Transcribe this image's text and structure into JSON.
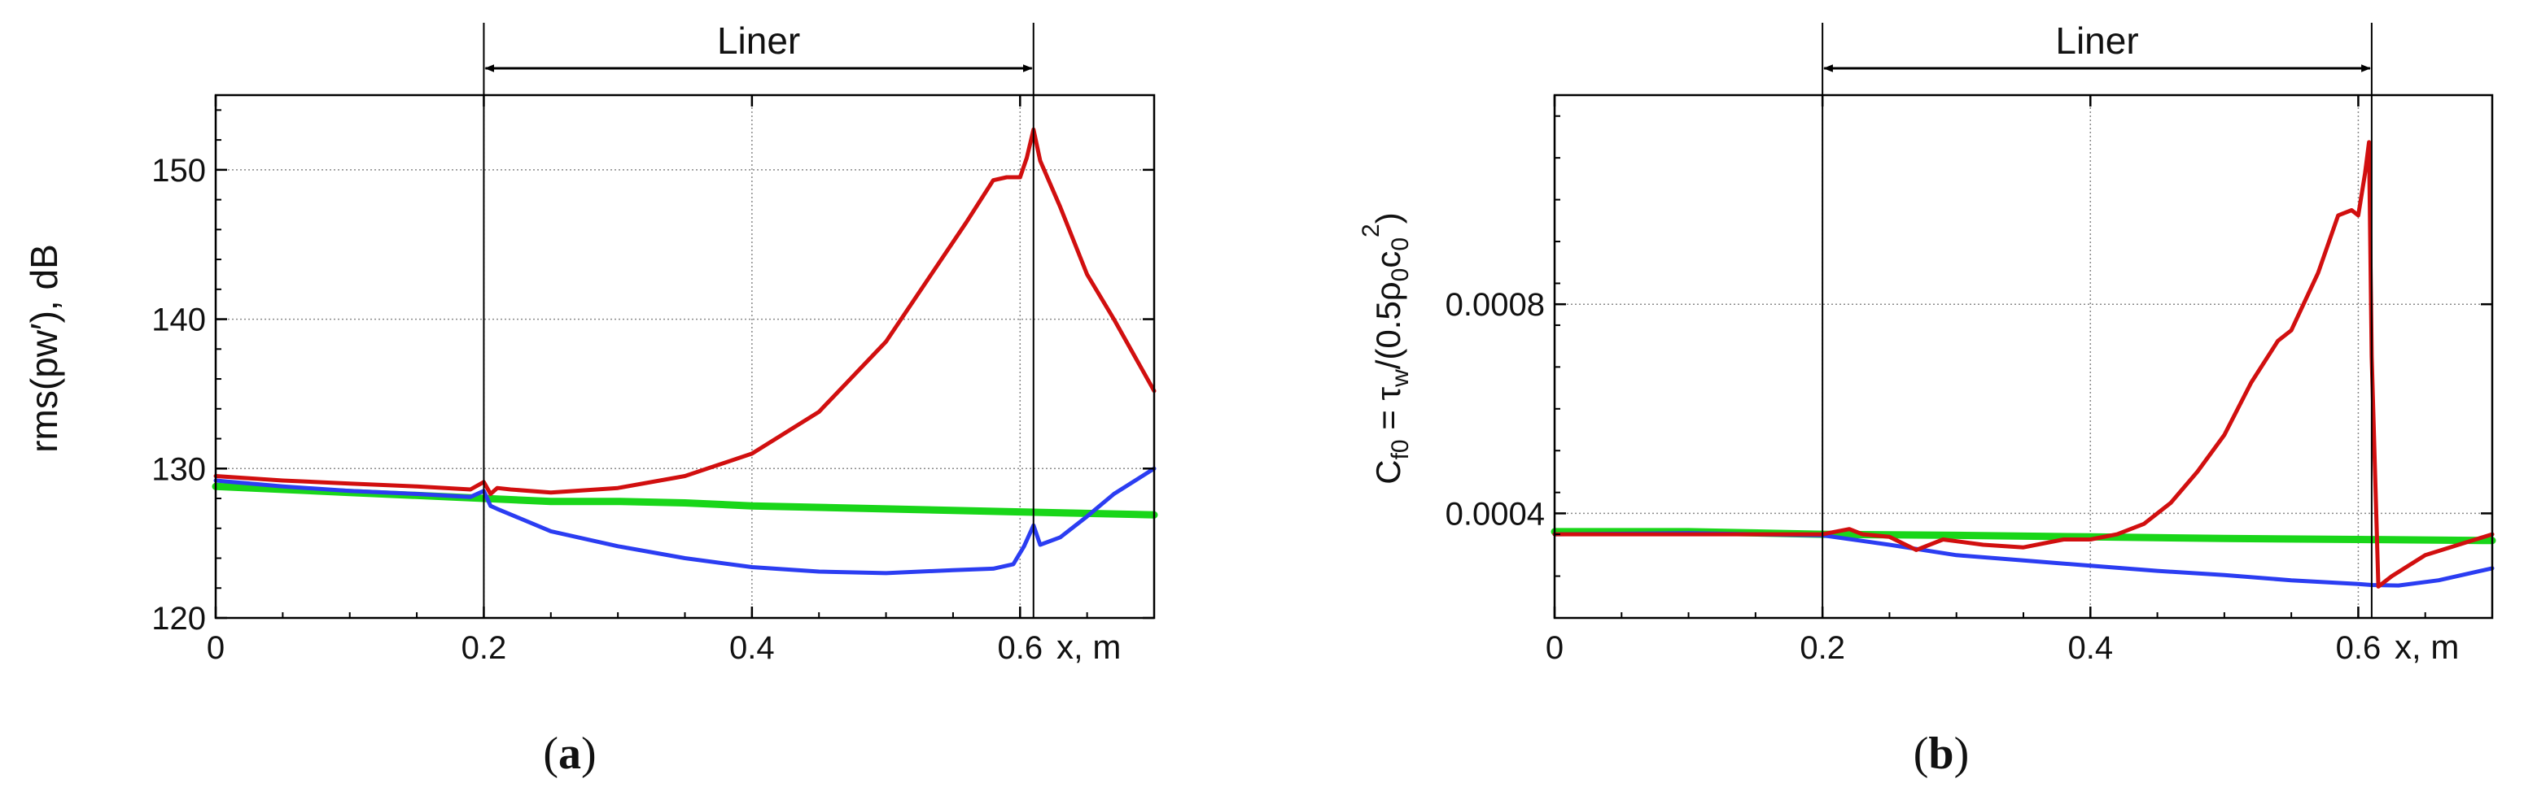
{
  "colors": {
    "red": "#d10f0f",
    "blue": "#2b3df2",
    "green": "#19d619",
    "axis": "#000000",
    "grid": "#8a8a8a"
  },
  "chart_data": [
    {
      "type": "line",
      "panel_label": "(a)",
      "panel_letter": "a",
      "xlabel": "x, m",
      "ylabel": "rms(pw′), dB",
      "xlim": [
        0,
        0.7
      ],
      "ylim": [
        120,
        155
      ],
      "x_ticks": [
        0,
        0.2,
        0.4,
        0.6
      ],
      "x_tick_labels": [
        "0",
        "0.2",
        "0.4",
        "0.6"
      ],
      "y_ticks": [
        120,
        130,
        140,
        150
      ],
      "y_tick_labels": [
        "120",
        "130",
        "140",
        "150"
      ],
      "grid": true,
      "liner": {
        "label": "Liner",
        "x_start": 0.2,
        "x_end": 0.61
      },
      "series": [
        {
          "color": "#d10f0f",
          "x": [
            0,
            0.05,
            0.1,
            0.15,
            0.19,
            0.2,
            0.205,
            0.21,
            0.22,
            0.25,
            0.3,
            0.35,
            0.4,
            0.45,
            0.5,
            0.53,
            0.56,
            0.58,
            0.59,
            0.6,
            0.605,
            0.61,
            0.615,
            0.63,
            0.65,
            0.67,
            0.7
          ],
          "y": [
            129.5,
            129.2,
            129,
            128.8,
            128.6,
            129.1,
            128.3,
            128.7,
            128.6,
            128.4,
            128.7,
            129.5,
            131,
            133.8,
            138.5,
            142.5,
            146.5,
            149.3,
            149.5,
            149.5,
            150.8,
            152.7,
            150.6,
            147.5,
            143,
            140,
            135.2
          ]
        },
        {
          "color": "#2b3df2",
          "x": [
            0,
            0.05,
            0.1,
            0.15,
            0.19,
            0.2,
            0.205,
            0.21,
            0.25,
            0.3,
            0.35,
            0.4,
            0.45,
            0.5,
            0.55,
            0.58,
            0.595,
            0.603,
            0.61,
            0.615,
            0.63,
            0.65,
            0.67,
            0.7
          ],
          "y": [
            129.2,
            128.8,
            128.5,
            128.3,
            128.1,
            128.5,
            127.5,
            127.3,
            125.8,
            124.8,
            124,
            123.4,
            123.1,
            123,
            123.2,
            123.3,
            123.6,
            124.8,
            126.2,
            124.9,
            125.4,
            126.8,
            128.3,
            130
          ]
        },
        {
          "color": "#19d619",
          "x": [
            0,
            0.1,
            0.2,
            0.25,
            0.3,
            0.35,
            0.4,
            0.5,
            0.6,
            0.7
          ],
          "y": [
            128.8,
            128.4,
            128,
            127.8,
            127.8,
            127.7,
            127.5,
            127.3,
            127.1,
            126.9
          ]
        }
      ]
    },
    {
      "type": "line",
      "panel_label": "(b)",
      "panel_letter": "b",
      "xlabel": "x, m",
      "ylabel_parts": [
        "C",
        "f0",
        " = τ",
        "w",
        "/(0.5ρ",
        "0",
        "c",
        "0",
        "2",
        ")"
      ],
      "xlim": [
        0,
        0.7
      ],
      "ylim": [
        0.0002,
        0.0012
      ],
      "x_ticks": [
        0,
        0.2,
        0.4,
        0.6
      ],
      "x_tick_labels": [
        "0",
        "0.2",
        "0.4",
        "0.6"
      ],
      "y_ticks": [
        0.0004,
        0.0008
      ],
      "y_tick_labels": [
        "0.0004",
        "0.0008"
      ],
      "grid": true,
      "liner": {
        "label": "Liner",
        "x_start": 0.2,
        "x_end": 0.61
      },
      "series": [
        {
          "color": "#d10f0f",
          "x": [
            0,
            0.1,
            0.2,
            0.22,
            0.23,
            0.25,
            0.27,
            0.29,
            0.32,
            0.35,
            0.38,
            0.4,
            0.42,
            0.44,
            0.46,
            0.48,
            0.5,
            0.52,
            0.54,
            0.55,
            0.57,
            0.585,
            0.595,
            0.6,
            0.605,
            0.608,
            0.61,
            0.615,
            0.625,
            0.65,
            0.7
          ],
          "y": [
            0.00036,
            0.00036,
            0.00036,
            0.00037,
            0.00036,
            0.000355,
            0.00033,
            0.00035,
            0.00034,
            0.000335,
            0.00035,
            0.00035,
            0.00036,
            0.00038,
            0.00042,
            0.00048,
            0.00055,
            0.00065,
            0.00073,
            0.00075,
            0.00086,
            0.00097,
            0.00098,
            0.00097,
            0.00105,
            0.00111,
            0.0007,
            0.00026,
            0.00028,
            0.00032,
            0.00036
          ]
        },
        {
          "color": "#2b3df2",
          "x": [
            0,
            0.1,
            0.2,
            0.25,
            0.3,
            0.35,
            0.4,
            0.45,
            0.5,
            0.55,
            0.6,
            0.61,
            0.63,
            0.66,
            0.7
          ],
          "y": [
            0.00036,
            0.000362,
            0.000358,
            0.00034,
            0.00032,
            0.00031,
            0.0003,
            0.00029,
            0.000282,
            0.000272,
            0.000265,
            0.000263,
            0.000262,
            0.000272,
            0.000295
          ]
        },
        {
          "color": "#19d619",
          "x": [
            0,
            0.1,
            0.2,
            0.3,
            0.4,
            0.5,
            0.6,
            0.7
          ],
          "y": [
            0.000365,
            0.000365,
            0.00036,
            0.000358,
            0.000355,
            0.000352,
            0.00035,
            0.000348
          ]
        }
      ]
    }
  ]
}
